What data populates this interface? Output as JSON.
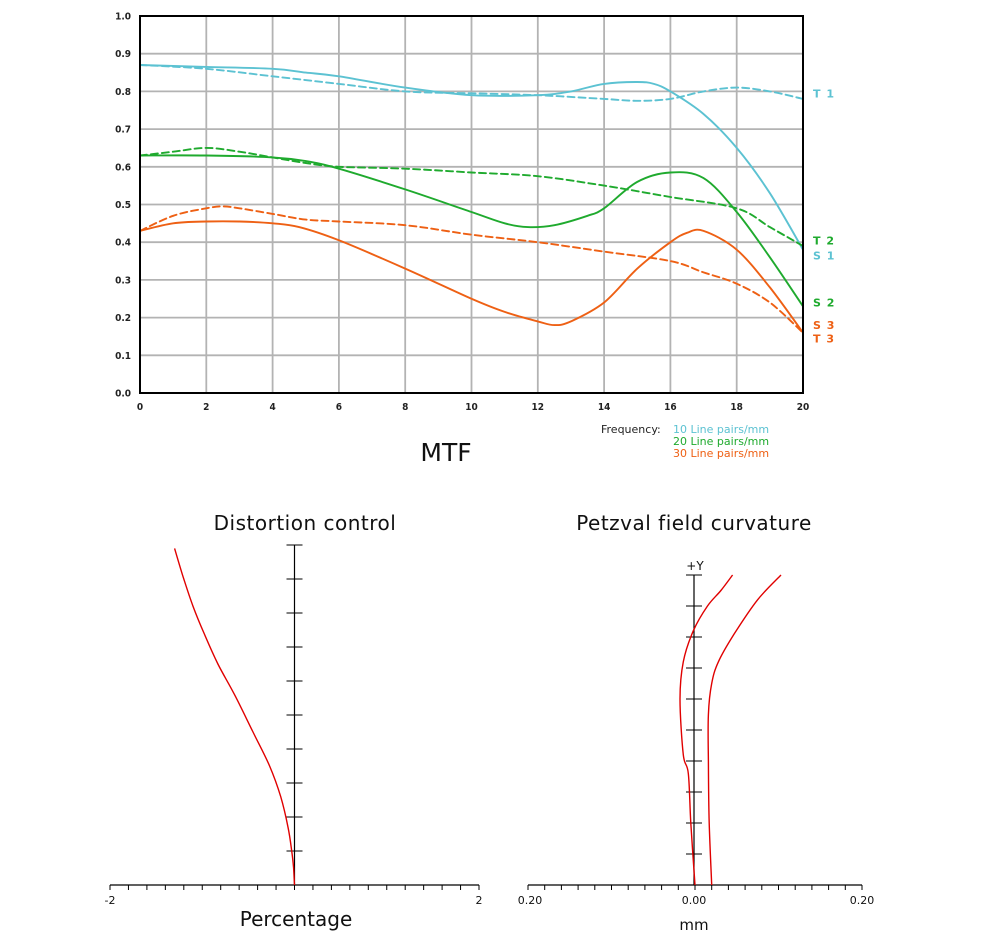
{
  "colors": {
    "s1": "#5cc2d2",
    "s2": "#1faa2e",
    "s3": "#ee6014",
    "red": "#e00000",
    "grid": "#b3b3b3",
    "axis": "#000000"
  },
  "chart_data": [
    {
      "type": "line",
      "title": "MTF",
      "xlim": [
        0,
        20
      ],
      "ylim": [
        0,
        1.0
      ],
      "xticks": [
        "0",
        "2",
        "4",
        "6",
        "8",
        "10",
        "12",
        "14",
        "16",
        "18",
        "20"
      ],
      "yticks": [
        "0.0",
        "0.1",
        "0.2",
        "0.3",
        "0.4",
        "0.5",
        "0.6",
        "0.7",
        "0.8",
        "0.9",
        "1.0"
      ],
      "grid": true,
      "frequency": {
        "label": "Frequency:",
        "entries": [
          "10 Line pairs/mm",
          "20 Line pairs/mm",
          "30 Line pairs/mm"
        ]
      },
      "series": [
        {
          "name": "T 1",
          "group": 1,
          "style": "dashed",
          "x": [
            0,
            2,
            4,
            6,
            8,
            10,
            12,
            14,
            15,
            16,
            17,
            18,
            19,
            20
          ],
          "y": [
            0.87,
            0.86,
            0.84,
            0.82,
            0.8,
            0.795,
            0.79,
            0.78,
            0.775,
            0.78,
            0.8,
            0.81,
            0.8,
            0.78
          ]
        },
        {
          "name": "S 1",
          "group": 1,
          "style": "solid",
          "x": [
            0,
            2,
            4,
            5,
            6,
            8,
            10,
            12,
            13,
            14,
            15,
            15.5,
            16,
            17,
            18,
            19,
            20
          ],
          "y": [
            0.87,
            0.865,
            0.86,
            0.85,
            0.84,
            0.81,
            0.79,
            0.79,
            0.8,
            0.82,
            0.825,
            0.82,
            0.8,
            0.74,
            0.65,
            0.53,
            0.38
          ]
        },
        {
          "name": "T 2",
          "group": 2,
          "style": "dashed",
          "x": [
            0,
            1,
            2,
            3,
            4,
            5,
            6,
            8,
            10,
            12,
            14,
            16,
            18,
            19,
            20
          ],
          "y": [
            0.63,
            0.64,
            0.65,
            0.64,
            0.625,
            0.61,
            0.6,
            0.595,
            0.585,
            0.575,
            0.55,
            0.52,
            0.49,
            0.44,
            0.39
          ]
        },
        {
          "name": "S 2",
          "group": 2,
          "style": "solid",
          "x": [
            0,
            2,
            4,
            5,
            6,
            8,
            10,
            11,
            11.7,
            12.5,
            13.5,
            14,
            15,
            16,
            17,
            18,
            19,
            20
          ],
          "y": [
            0.63,
            0.63,
            0.625,
            0.615,
            0.595,
            0.54,
            0.48,
            0.45,
            0.44,
            0.445,
            0.47,
            0.49,
            0.56,
            0.585,
            0.57,
            0.48,
            0.36,
            0.23
          ]
        },
        {
          "name": "T 3",
          "group": 3,
          "style": "dashed",
          "x": [
            0,
            1,
            2,
            2.5,
            3,
            4,
            5,
            6,
            8,
            10,
            12,
            14,
            16,
            17,
            18,
            19,
            20
          ],
          "y": [
            0.43,
            0.47,
            0.49,
            0.495,
            0.49,
            0.475,
            0.46,
            0.455,
            0.445,
            0.42,
            0.4,
            0.375,
            0.35,
            0.32,
            0.29,
            0.24,
            0.16
          ]
        },
        {
          "name": "S 3",
          "group": 3,
          "style": "solid",
          "x": [
            0,
            1,
            2,
            3,
            4,
            4.8,
            6,
            8,
            10,
            11,
            12,
            12.5,
            13,
            14,
            15,
            16,
            16.5,
            17,
            18,
            19,
            20
          ],
          "y": [
            0.43,
            0.45,
            0.455,
            0.455,
            0.45,
            0.44,
            0.405,
            0.33,
            0.25,
            0.215,
            0.19,
            0.18,
            0.19,
            0.24,
            0.33,
            0.4,
            0.425,
            0.43,
            0.38,
            0.28,
            0.16
          ]
        }
      ],
      "end_labels": [
        {
          "text": "T 1",
          "group": 1,
          "y": 0.795
        },
        {
          "text": "T 2",
          "group": 2,
          "y": 0.405
        },
        {
          "text": "S 1",
          "group": 1,
          "y": 0.365
        },
        {
          "text": "S 2",
          "group": 2,
          "y": 0.24
        },
        {
          "text": "S 3",
          "group": 3,
          "y": 0.18
        },
        {
          "text": "T 3",
          "group": 3,
          "y": 0.145
        }
      ]
    },
    {
      "type": "line",
      "title": "Distortion control",
      "xlabel": "Percentage",
      "xlim": [
        -2,
        2
      ],
      "ylim": [
        0,
        1
      ],
      "xtick_labels": {
        "left": "-2",
        "right": "2"
      },
      "series": [
        {
          "name": "",
          "x": [
            0.0,
            -0.01,
            -0.03,
            -0.07,
            -0.15,
            -0.27,
            -0.45,
            -0.65,
            -0.83,
            -0.98,
            -1.1,
            -1.2,
            -1.3
          ],
          "y": [
            0.0,
            0.05,
            0.1,
            0.17,
            0.26,
            0.35,
            0.45,
            0.56,
            0.65,
            0.74,
            0.82,
            0.9,
            0.99
          ]
        }
      ]
    },
    {
      "type": "line",
      "title": "Petzval field curvature",
      "xlabel": "mm",
      "ylabel": "+Y",
      "xlim": [
        -0.2,
        0.2
      ],
      "ylim": [
        0,
        1
      ],
      "xtick_labels": {
        "left": "0.20",
        "center": "0.00",
        "right": "0.20"
      },
      "series": [
        {
          "name": "",
          "x": [
            0.0,
            -0.005,
            -0.008,
            -0.014,
            -0.018,
            -0.014,
            -0.002,
            0.015,
            0.031,
            0.045
          ],
          "y": [
            0.0,
            0.2,
            0.36,
            0.42,
            0.6,
            0.72,
            0.82,
            0.9,
            0.95,
            1.0
          ]
        },
        {
          "name": "",
          "x": [
            0.02,
            0.017,
            0.016,
            0.016,
            0.02,
            0.028,
            0.047,
            0.075,
            0.103
          ],
          "y": [
            0.0,
            0.2,
            0.4,
            0.55,
            0.65,
            0.72,
            0.81,
            0.92,
            1.0
          ]
        }
      ]
    }
  ]
}
